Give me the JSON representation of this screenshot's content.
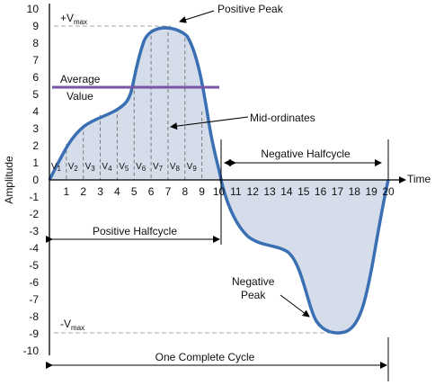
{
  "colors": {
    "wave_stroke": "#3a6fb4",
    "wave_fill": "#d4dde9",
    "average_line": "#7a56a8",
    "dashed": "#a6a6a6",
    "axis": "#000000"
  },
  "y_ticks": [
    "10",
    "9",
    "8",
    "7",
    "6",
    "5",
    "4",
    "3",
    "2",
    "1",
    "0",
    "-1",
    "-2",
    "-3",
    "-4",
    "-5",
    "-6",
    "-7",
    "-8",
    "-9",
    "-10"
  ],
  "x_ticks": [
    "1",
    "2",
    "3",
    "4",
    "5",
    "6",
    "7",
    "8",
    "9",
    "10",
    "11",
    "12",
    "13",
    "14",
    "15",
    "16",
    "17",
    "18",
    "19",
    "20"
  ],
  "y_axis_label": "Amplitude",
  "x_axis_label": "Time",
  "labels": {
    "vmax_pos_prefix": "+V",
    "vmax_neg_prefix": "-V",
    "vmax_sub": "max",
    "positive_peak": "Positive Peak",
    "average": "Average",
    "value": "Value",
    "mid_ordinates": "Mid-ordinates",
    "negative_halfcycle": "Negative Halfcycle",
    "positive_halfcycle": "Positive Halfcycle",
    "negative": "Negative",
    "peak": "Peak",
    "one_complete_cycle": "One Complete Cycle"
  },
  "mid_ordinate_labels": [
    "V",
    "V",
    "V",
    "V",
    "V",
    "V",
    "V",
    "V",
    "V"
  ],
  "mid_ordinate_subs": [
    "1",
    "2",
    "3",
    "4",
    "5",
    "6",
    "7",
    "8",
    "9"
  ],
  "chart_data": {
    "type": "line",
    "x_range": [
      0,
      20
    ],
    "y_range": [
      -10,
      10
    ],
    "average_value": 5.4,
    "positive_peak": 9,
    "negative_peak": -9,
    "series": [
      {
        "x": [
          0,
          1,
          2,
          3,
          4,
          5,
          6,
          7,
          8,
          9,
          10,
          11,
          12,
          13,
          14,
          15,
          16,
          17,
          18,
          19,
          20
        ],
        "y": [
          0,
          2.3,
          3.3,
          3.9,
          4.3,
          5.6,
          8.8,
          9,
          8.3,
          4,
          0,
          -2.5,
          -4.3,
          -5,
          -5.4,
          -6.5,
          -8.5,
          -9,
          -8.8,
          -4,
          0
        ]
      }
    ]
  }
}
